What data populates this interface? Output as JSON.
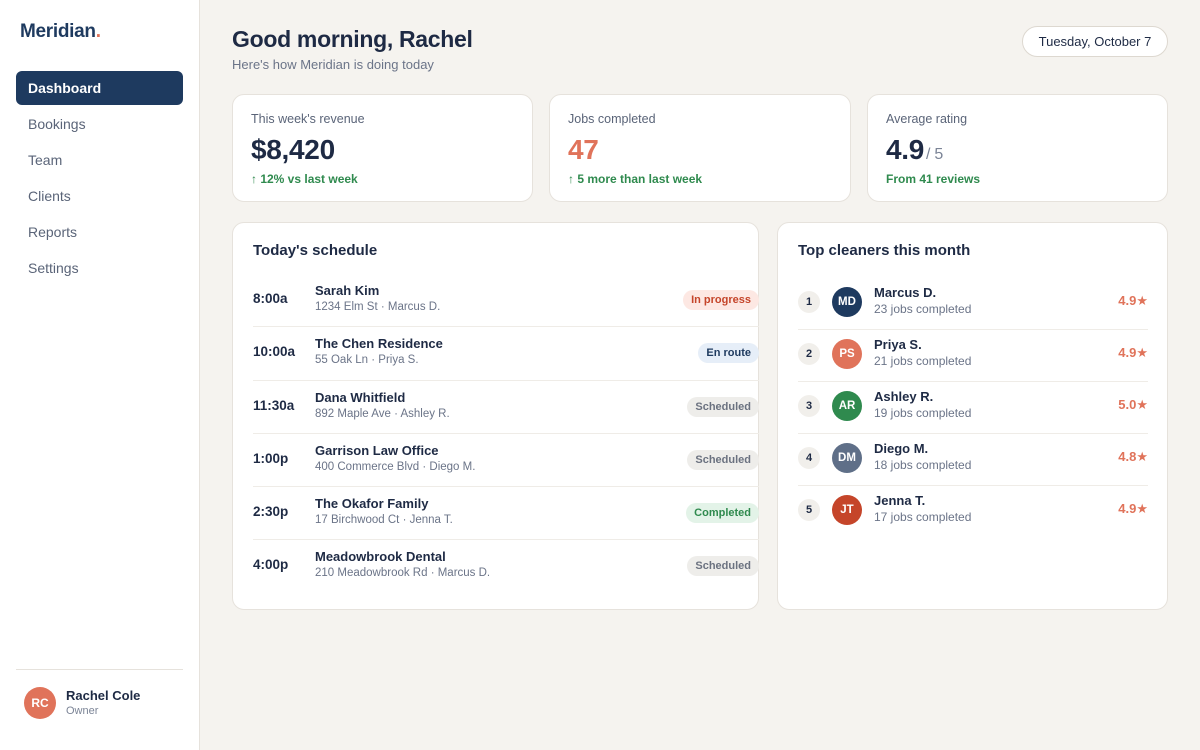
{
  "brand": {
    "name": "Meridian",
    "dot": "."
  },
  "nav": [
    {
      "label": "Dashboard",
      "active": true
    },
    {
      "label": "Bookings",
      "active": false
    },
    {
      "label": "Team",
      "active": false
    },
    {
      "label": "Clients",
      "active": false
    },
    {
      "label": "Reports",
      "active": false
    },
    {
      "label": "Settings",
      "active": false
    }
  ],
  "user": {
    "initials": "RC",
    "name": "Rachel Cole",
    "role": "Owner"
  },
  "header": {
    "greeting": "Good morning, Rachel",
    "subtitle": "Here's how Meridian is doing today",
    "date": "Tuesday, October 7"
  },
  "stats": {
    "revenue": {
      "label": "This week's revenue",
      "value": "$8,420",
      "delta": "↑ 12% vs last week"
    },
    "jobs": {
      "label": "Jobs completed",
      "value": "47",
      "delta": "↑ 5 more than last week"
    },
    "rating": {
      "label": "Average rating",
      "value": "4.9",
      "suffix": "/ 5",
      "delta": "From 41 reviews"
    }
  },
  "schedule": {
    "title": "Today's schedule",
    "rows": [
      {
        "time": "8:00a",
        "client": "Sarah Kim",
        "detail": "1234 Elm St · Marcus D.",
        "status": "In progress",
        "status_type": "progress"
      },
      {
        "time": "10:00a",
        "client": "The Chen Residence",
        "detail": "55 Oak Ln · Priya S.",
        "status": "En route",
        "status_type": "enroute"
      },
      {
        "time": "11:30a",
        "client": "Dana Whitfield",
        "detail": "892 Maple Ave · Ashley R.",
        "status": "Scheduled",
        "status_type": "scheduled"
      },
      {
        "time": "1:00p",
        "client": "Garrison Law Office",
        "detail": "400 Commerce Blvd · Diego M.",
        "status": "Scheduled",
        "status_type": "scheduled"
      },
      {
        "time": "2:30p",
        "client": "The Okafor Family",
        "detail": "17 Birchwood Ct · Jenna T.",
        "status": "Completed",
        "status_type": "completed"
      },
      {
        "time": "4:00p",
        "client": "Meadowbrook Dental",
        "detail": "210 Meadowbrook Rd · Marcus D.",
        "status": "Scheduled",
        "status_type": "scheduled"
      }
    ]
  },
  "top_cleaners": {
    "title": "Top cleaners this month",
    "rows": [
      {
        "rank": "1",
        "initials": "MD",
        "name": "Marcus D.",
        "jobs": "23 jobs completed",
        "rating": "4.9★",
        "color": "#1e3a5f"
      },
      {
        "rank": "2",
        "initials": "PS",
        "name": "Priya S.",
        "jobs": "21 jobs completed",
        "rating": "4.9★",
        "color": "#e0735a"
      },
      {
        "rank": "3",
        "initials": "AR",
        "name": "Ashley R.",
        "jobs": "19 jobs completed",
        "rating": "5.0★",
        "color": "#2f8a4e"
      },
      {
        "rank": "4",
        "initials": "DM",
        "name": "Diego M.",
        "jobs": "18 jobs completed",
        "rating": "4.8★",
        "color": "#5f6f88"
      },
      {
        "rank": "5",
        "initials": "JT",
        "name": "Jenna T.",
        "jobs": "17 jobs completed",
        "rating": "4.9★",
        "color": "#c5452a"
      }
    ]
  }
}
